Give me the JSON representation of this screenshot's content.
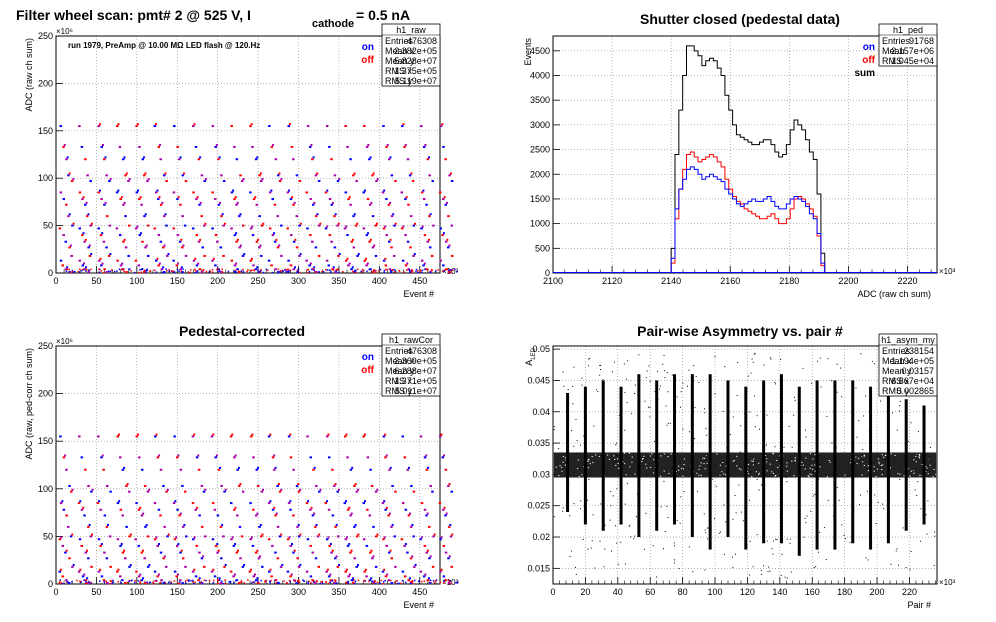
{
  "chart_data": [
    {
      "id": "raw",
      "type": "scatter",
      "title_parts": {
        "main": "Filter wheel scan: pmt#   2 @   525 V, I",
        "sub": "cathode",
        "tail": "= 0.5 nA"
      },
      "annotation": "run 1979, PreAmp @ 10.00 MΩ LED flash @  120.Hz",
      "xlabel": "Event #",
      "ylabel": "ADC (raw ch sum)",
      "x_exponent": "×10³",
      "y_exponent": "×10⁶",
      "xlim": [
        0,
        475
      ],
      "ylim": [
        0,
        250
      ],
      "xticks": [
        0,
        50,
        100,
        150,
        200,
        250,
        300,
        350,
        400,
        450
      ],
      "yticks": [
        0,
        50,
        100,
        150,
        200,
        250
      ],
      "grid": true,
      "legend": [
        {
          "label": "on",
          "color": "#0000ff"
        },
        {
          "label": "off",
          "color": "#ff0000"
        }
      ],
      "stats": {
        "name": "h1_raw",
        "rows": [
          [
            "Entries",
            "476308"
          ],
          [
            "Mean x",
            "2.382e+05"
          ],
          [
            "Mean y",
            "5.828e+07"
          ],
          [
            "RMS x",
            "1.375e+05"
          ],
          [
            "RMS y",
            "5.119e+07"
          ]
        ]
      },
      "levels": [
        155,
        133,
        120,
        103,
        97,
        85,
        78,
        72,
        60,
        50,
        47,
        40,
        33,
        27,
        18,
        13,
        8,
        4,
        1
      ],
      "period": 23.5
    },
    {
      "id": "ped",
      "type": "line",
      "title": "Shutter closed (pedestal data)",
      "xlabel": "ADC (raw ch sum)",
      "ylabel": "Events",
      "x_exponent": "×10³",
      "xlim": [
        2100,
        2230
      ],
      "ylim": [
        0,
        4800
      ],
      "xticks": [
        2100,
        2120,
        2140,
        2160,
        2180,
        2200,
        2220
      ],
      "yticks": [
        0,
        500,
        1000,
        1500,
        2000,
        2500,
        3000,
        3500,
        4000,
        4500
      ],
      "grid": true,
      "legend": [
        {
          "label": "on",
          "color": "#0000ff"
        },
        {
          "label": "off",
          "color": "#ff0000"
        },
        {
          "label": "sum",
          "color": "#000000"
        }
      ],
      "stats": {
        "name": "h1_ped",
        "rows": [
          [
            "Entries",
            "91768"
          ],
          [
            "Mean",
            "2.157e+06"
          ],
          [
            "RMS",
            "1.045e+04"
          ]
        ]
      },
      "bin_start": 2140,
      "bin_width": 1.3,
      "series": [
        {
          "name": "sum",
          "color": "#000000",
          "values": [
            500,
            2400,
            3300,
            4000,
            4600,
            4600,
            4500,
            4400,
            4200,
            4300,
            4350,
            4300,
            4150,
            4000,
            3600,
            3300,
            3000,
            2800,
            2750,
            2700,
            2650,
            2600,
            2600,
            2650,
            2700,
            2700,
            2600,
            2450,
            2350,
            2400,
            2600,
            2900,
            3100,
            3000,
            2900,
            2700,
            2450,
            2300,
            1600,
            400
          ]
        },
        {
          "name": "off",
          "color": "#ff0000",
          "values": [
            200,
            1100,
            1700,
            2100,
            2400,
            2450,
            2350,
            2250,
            2300,
            2350,
            2400,
            2350,
            2250,
            2150,
            1900,
            1700,
            1550,
            1450,
            1400,
            1300,
            1250,
            1200,
            1150,
            1100,
            1100,
            1150,
            1200,
            1100,
            1000,
            1000,
            1100,
            1300,
            1500,
            1550,
            1500,
            1400,
            1300,
            1150,
            750,
            150
          ]
        },
        {
          "name": "on",
          "color": "#0000ff",
          "values": [
            300,
            1300,
            1700,
            1900,
            2100,
            2150,
            2100,
            2000,
            1900,
            1950,
            2000,
            1950,
            1900,
            1850,
            1700,
            1600,
            1500,
            1400,
            1350,
            1400,
            1450,
            1500,
            1450,
            1450,
            1500,
            1550,
            1450,
            1350,
            1300,
            1300,
            1400,
            1500,
            1550,
            1500,
            1450,
            1350,
            1200,
            1100,
            800,
            200
          ]
        }
      ]
    },
    {
      "id": "rawcor",
      "type": "scatter",
      "title": "Pedestal-corrected",
      "xlabel": "Event #",
      "ylabel": "ADC (raw, ped-corr ch sum)",
      "x_exponent": "×10³",
      "y_exponent": "×10⁶",
      "xlim": [
        0,
        475
      ],
      "ylim": [
        0,
        250
      ],
      "xticks": [
        0,
        50,
        100,
        150,
        200,
        250,
        300,
        350,
        400,
        450
      ],
      "yticks": [
        0,
        50,
        100,
        150,
        200,
        250
      ],
      "grid": true,
      "legend": [
        {
          "label": "on",
          "color": "#0000ff"
        },
        {
          "label": "off",
          "color": "#ff0000"
        }
      ],
      "stats": {
        "name": "h1_rawCor",
        "rows": [
          [
            "Entries",
            "476308"
          ],
          [
            "Mean x",
            "2.369e+05"
          ],
          [
            "Mean y",
            "6.288e+07"
          ],
          [
            "RMS x",
            "1.371e+05"
          ],
          [
            "RMS y",
            "5.011e+07"
          ]
        ]
      },
      "levels": [
        155,
        133,
        120,
        103,
        97,
        85,
        78,
        72,
        60,
        50,
        47,
        40,
        33,
        27,
        18,
        13,
        8,
        4,
        1
      ],
      "period": 23.5
    },
    {
      "id": "asym",
      "type": "scatter",
      "title": "Pair-wise Asymmetry vs. pair #",
      "ylabel": "A",
      "ylabel_sub": "LED",
      "xlabel": "Pair #",
      "x_exponent": "×10³",
      "xlim": [
        0,
        237
      ],
      "ylim": [
        0.0125,
        0.0505
      ],
      "xticks": [
        0,
        20,
        40,
        60,
        80,
        100,
        120,
        140,
        160,
        180,
        200,
        220
      ],
      "yticks": [
        0.015,
        0.02,
        0.025,
        0.03,
        0.035,
        0.04,
        0.045,
        0.05
      ],
      "ytick_labels": [
        "0.015",
        "0.02",
        "0.025",
        "0.03",
        "0.035",
        "0.04",
        "0.045",
        "0.05"
      ],
      "grid": true,
      "stats": {
        "name": "h1_asym_my",
        "rows": [
          [
            "Entries",
            "238154"
          ],
          [
            "Mean x",
            "1.194e+05"
          ],
          [
            "Mean y",
            "0.03157"
          ],
          [
            "RMS x",
            "6.867e+04"
          ],
          [
            "RMS y",
            "0.002865"
          ]
        ]
      },
      "band": [
        0.0295,
        0.0335
      ],
      "spikes": [
        {
          "x": 9,
          "ymin": 0.024,
          "ymax": 0.043
        },
        {
          "x": 20,
          "ymin": 0.022,
          "ymax": 0.044
        },
        {
          "x": 31,
          "ymin": 0.021,
          "ymax": 0.045
        },
        {
          "x": 42,
          "ymin": 0.022,
          "ymax": 0.044
        },
        {
          "x": 53,
          "ymin": 0.02,
          "ymax": 0.046
        },
        {
          "x": 64,
          "ymin": 0.021,
          "ymax": 0.045
        },
        {
          "x": 75,
          "ymin": 0.022,
          "ymax": 0.046
        },
        {
          "x": 86,
          "ymin": 0.02,
          "ymax": 0.046
        },
        {
          "x": 97,
          "ymin": 0.018,
          "ymax": 0.046
        },
        {
          "x": 108,
          "ymin": 0.02,
          "ymax": 0.045
        },
        {
          "x": 119,
          "ymin": 0.018,
          "ymax": 0.044
        },
        {
          "x": 130,
          "ymin": 0.019,
          "ymax": 0.045
        },
        {
          "x": 141,
          "ymin": 0.019,
          "ymax": 0.046
        },
        {
          "x": 152,
          "ymin": 0.017,
          "ymax": 0.044
        },
        {
          "x": 163,
          "ymin": 0.018,
          "ymax": 0.045
        },
        {
          "x": 174,
          "ymin": 0.018,
          "ymax": 0.045
        },
        {
          "x": 185,
          "ymin": 0.019,
          "ymax": 0.045
        },
        {
          "x": 196,
          "ymin": 0.018,
          "ymax": 0.044
        },
        {
          "x": 207,
          "ymin": 0.019,
          "ymax": 0.043
        },
        {
          "x": 218,
          "ymin": 0.021,
          "ymax": 0.042
        },
        {
          "x": 229,
          "ymin": 0.022,
          "ymax": 0.041
        }
      ]
    }
  ]
}
